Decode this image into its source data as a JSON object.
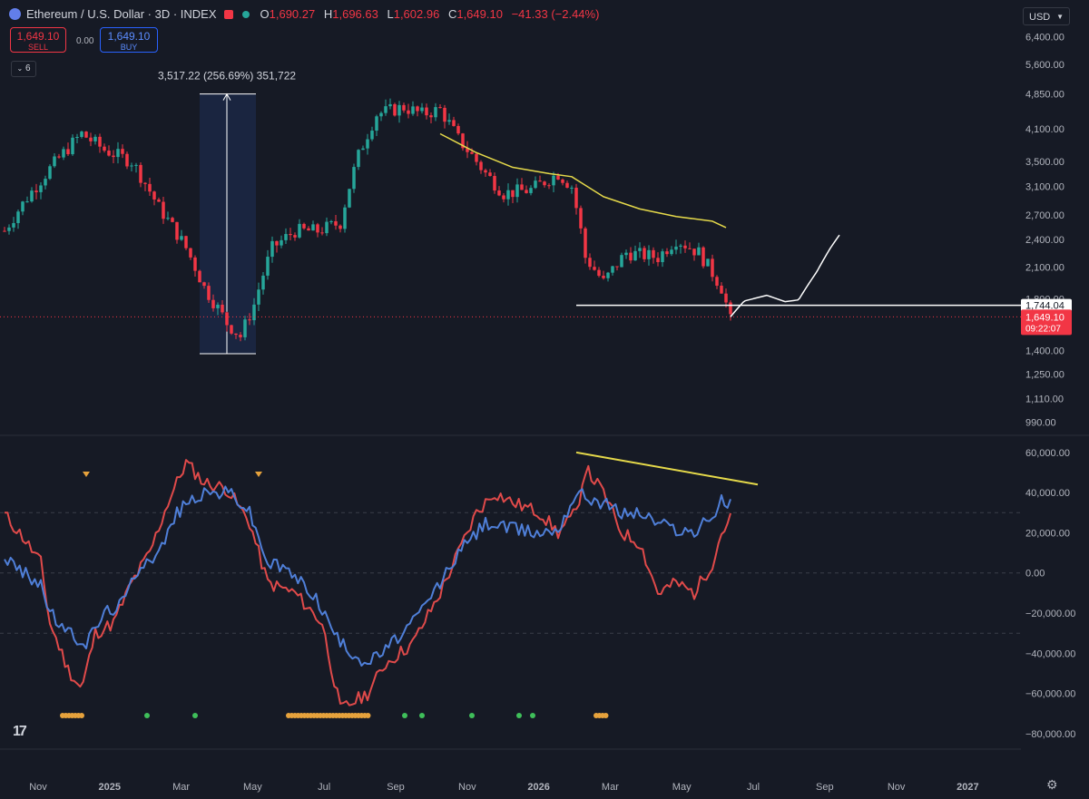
{
  "header": {
    "symbol": "Ethereum / U.S. Dollar · 3D · INDEX",
    "open_label": "O",
    "open": "1,690.27",
    "high_label": "H",
    "high": "1,696.63",
    "low_label": "L",
    "low": "1,602.96",
    "close_label": "C",
    "close": "1,649.10",
    "change": "−41.33 (−2.44%)"
  },
  "trade": {
    "sell_price": "1,649.10",
    "sell_label": "SELL",
    "spread": "0.00",
    "buy_price": "1,649.10",
    "buy_label": "BUY"
  },
  "indicator_count": "6",
  "currency": "USD",
  "colors": {
    "bg": "#161a25",
    "up": "#26a69a",
    "down": "#f23645",
    "ma": "#e5d94a",
    "osc_red": "#e04a4a",
    "osc_blue": "#4f7fd8",
    "signal_orange": "#e6a23c",
    "signal_green": "#3fbf5a"
  },
  "chart_data": [
    {
      "type": "candlestick",
      "x_ticks": [
        "Nov",
        "2025",
        "Mar",
        "May",
        "Jul",
        "Sep",
        "Nov",
        "2026",
        "Mar",
        "May",
        "Jul",
        "Sep",
        "Nov",
        "2027"
      ],
      "y_ticks": [
        "6,400.00",
        "5,600.00",
        "4,850.00",
        "4,100.00",
        "3,500.00",
        "3,100.00",
        "2,700.00",
        "2,400.00",
        "2,100.00",
        "1,800.00",
        "1,400.00",
        "1,250.00",
        "1,110.00",
        "990.00"
      ],
      "ylim": [
        950,
        6700
      ],
      "scale": "log",
      "path_knots": [
        [
          0,
          2500
        ],
        [
          0.04,
          3200
        ],
        [
          0.085,
          4000
        ],
        [
          0.11,
          3700
        ],
        [
          0.14,
          3500
        ],
        [
          0.17,
          2800
        ],
        [
          0.2,
          2300
        ],
        [
          0.22,
          1900
        ],
        [
          0.245,
          1600
        ],
        [
          0.26,
          1500
        ],
        [
          0.275,
          1750
        ],
        [
          0.295,
          2300
        ],
        [
          0.32,
          2500
        ],
        [
          0.345,
          2500
        ],
        [
          0.37,
          2600
        ],
        [
          0.39,
          3600
        ],
        [
          0.41,
          4400
        ],
        [
          0.44,
          4550
        ],
        [
          0.46,
          4400
        ],
        [
          0.48,
          4500
        ],
        [
          0.5,
          3900
        ],
        [
          0.53,
          3300
        ],
        [
          0.55,
          3000
        ],
        [
          0.58,
          3050
        ],
        [
          0.61,
          3300
        ],
        [
          0.625,
          3100
        ],
        [
          0.64,
          2200
        ],
        [
          0.66,
          1950
        ],
        [
          0.685,
          2250
        ],
        [
          0.72,
          2200
        ],
        [
          0.74,
          2400
        ],
        [
          0.765,
          2250
        ],
        [
          0.79,
          1900
        ],
        [
          0.8,
          1620
        ]
      ],
      "moving_average": [
        [
          0.48,
          4000
        ],
        [
          0.52,
          3650
        ],
        [
          0.56,
          3400
        ],
        [
          0.6,
          3300
        ],
        [
          0.625,
          3250
        ],
        [
          0.66,
          2950
        ],
        [
          0.7,
          2780
        ],
        [
          0.74,
          2680
        ],
        [
          0.78,
          2620
        ],
        [
          0.795,
          2540
        ]
      ],
      "measure_label": "3,517.22 (256.69%) 351,722",
      "measure_range": [
        1380,
        4850
      ],
      "support_level": 1744.04,
      "support_label": "1,744.04",
      "last_price": "1,649.10",
      "countdown": "09:22:07",
      "projection": [
        [
          0.8,
          1650
        ],
        [
          0.815,
          1780
        ],
        [
          0.84,
          1830
        ],
        [
          0.86,
          1775
        ],
        [
          0.875,
          1790
        ],
        [
          0.895,
          2050
        ],
        [
          0.91,
          2300
        ],
        [
          0.92,
          2450
        ]
      ]
    },
    {
      "type": "line",
      "y_ticks": [
        "60,000.00",
        "40,000.00",
        "20,000.00",
        "0.00",
        "−20,000.00",
        "−40,000.00",
        "−60,000.00",
        "−80,000.00"
      ],
      "ylim": [
        -85000,
        64000
      ],
      "reference_levels": [
        30000,
        0,
        -30000
      ],
      "series": [
        {
          "values": [
            [
              0,
              29000
            ],
            [
              0.02,
              18000
            ],
            [
              0.04,
              5000
            ],
            [
              0.05,
              -25000
            ],
            [
              0.07,
              -48000
            ],
            [
              0.085,
              -58000
            ],
            [
              0.1,
              -30000
            ],
            [
              0.12,
              -25000
            ],
            [
              0.14,
              -5000
            ],
            [
              0.16,
              10000
            ],
            [
              0.18,
              35000
            ],
            [
              0.2,
              55000
            ],
            [
              0.22,
              45000
            ],
            [
              0.245,
              42000
            ],
            [
              0.27,
              25000
            ],
            [
              0.29,
              -5000
            ],
            [
              0.32,
              -10000
            ],
            [
              0.35,
              -25000
            ],
            [
              0.37,
              -68000
            ],
            [
              0.4,
              -60000
            ],
            [
              0.42,
              -45000
            ],
            [
              0.45,
              -35000
            ],
            [
              0.48,
              -10000
            ],
            [
              0.5,
              10000
            ],
            [
              0.52,
              30000
            ],
            [
              0.54,
              40000
            ],
            [
              0.56,
              35000
            ],
            [
              0.59,
              30000
            ],
            [
              0.61,
              20000
            ],
            [
              0.63,
              30000
            ],
            [
              0.64,
              52000
            ],
            [
              0.66,
              40000
            ],
            [
              0.68,
              20000
            ],
            [
              0.7,
              15000
            ],
            [
              0.72,
              -10000
            ],
            [
              0.74,
              -5000
            ],
            [
              0.76,
              -10000
            ],
            [
              0.78,
              5000
            ],
            [
              0.79,
              20000
            ],
            [
              0.8,
              27000
            ]
          ]
        },
        {
          "values": [
            [
              0,
              8000
            ],
            [
              0.02,
              0
            ],
            [
              0.04,
              -5000
            ],
            [
              0.05,
              -20000
            ],
            [
              0.07,
              -30000
            ],
            [
              0.09,
              -35000
            ],
            [
              0.11,
              -20000
            ],
            [
              0.13,
              -15000
            ],
            [
              0.15,
              5000
            ],
            [
              0.17,
              10000
            ],
            [
              0.19,
              30000
            ],
            [
              0.21,
              38000
            ],
            [
              0.23,
              40000
            ],
            [
              0.25,
              40000
            ],
            [
              0.27,
              30000
            ],
            [
              0.29,
              5000
            ],
            [
              0.31,
              2000
            ],
            [
              0.34,
              -10000
            ],
            [
              0.37,
              -35000
            ],
            [
              0.4,
              -45000
            ],
            [
              0.42,
              -38000
            ],
            [
              0.45,
              -25000
            ],
            [
              0.48,
              -5000
            ],
            [
              0.5,
              10000
            ],
            [
              0.53,
              25000
            ],
            [
              0.56,
              22000
            ],
            [
              0.59,
              20000
            ],
            [
              0.61,
              22000
            ],
            [
              0.63,
              40000
            ],
            [
              0.66,
              35000
            ],
            [
              0.68,
              30000
            ],
            [
              0.7,
              30000
            ],
            [
              0.72,
              25000
            ],
            [
              0.74,
              22000
            ],
            [
              0.76,
              20000
            ],
            [
              0.78,
              28000
            ],
            [
              0.79,
              36000
            ],
            [
              0.8,
              34000
            ]
          ]
        }
      ],
      "trendline": [
        [
          0.63,
          60000
        ],
        [
          0.83,
          44000
        ]
      ],
      "triangle_markers": [
        0.09,
        0.28
      ],
      "orange_dot_ranges": [
        [
          0.064,
          0.085
        ],
        [
          0.313,
          0.402
        ],
        [
          0.652,
          0.665
        ]
      ],
      "green_dots": [
        0.157,
        0.21,
        0.441,
        0.46,
        0.515,
        0.567,
        0.582
      ]
    }
  ]
}
